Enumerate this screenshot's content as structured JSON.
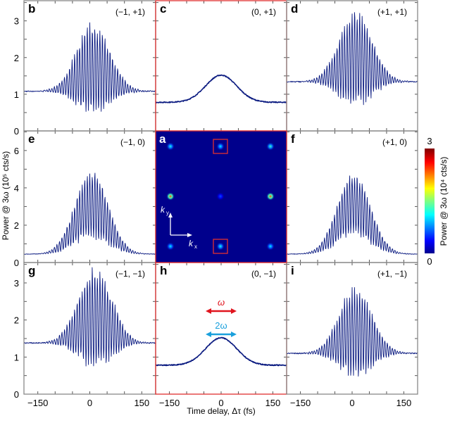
{
  "chart_data": {
    "type": "line",
    "xlabel": "Time delay, Δτ (fs)",
    "ylabel": "Power @ 3ω (10⁵ cts/s)",
    "xlim": [
      -190,
      190
    ],
    "x_ticks": [
      -150,
      0,
      150
    ],
    "x_tick_labels": [
      "−150",
      "0",
      "150"
    ],
    "rows": [
      {
        "ylim": [
          0,
          3.55
        ],
        "y_ticks": [
          0,
          1,
          2,
          3
        ],
        "y_tick_labels": [
          "0",
          "1",
          "2",
          "3"
        ],
        "minor_step": 0.5
      },
      {
        "ylim": [
          0,
          7.05
        ],
        "y_ticks": [
          0,
          2,
          4,
          6
        ],
        "y_tick_labels": [
          "0",
          "2",
          "4",
          "6"
        ],
        "minor_step": 1
      },
      {
        "ylim": [
          0,
          3.55
        ],
        "y_ticks": [
          0,
          1,
          2,
          3
        ],
        "y_tick_labels": [
          "0",
          "1",
          "2",
          "3"
        ],
        "minor_step": 0.5
      }
    ],
    "panels": [
      {
        "letter": "b",
        "order": "(−1, +1)",
        "row": 0,
        "col": 0,
        "kind": "fringe",
        "baseline": 1.08,
        "max": 3.0,
        "min": 0.4,
        "center": 10,
        "highlight": false
      },
      {
        "letter": "c",
        "order": "(0, +1)",
        "row": 0,
        "col": 1,
        "kind": "smooth",
        "baseline": 0.78,
        "max": 1.52,
        "center": 0,
        "highlight": true
      },
      {
        "letter": "d",
        "order": "(+1, +1)",
        "row": 0,
        "col": 2,
        "kind": "fringe",
        "baseline": 1.34,
        "max": 3.34,
        "min": 0.6,
        "center": 10,
        "highlight": false
      },
      {
        "letter": "e",
        "order": "(−1, 0)",
        "row": 1,
        "col": 0,
        "kind": "fringe",
        "baseline": 0.45,
        "max": 5.0,
        "min": 1.2,
        "center": 5,
        "highlight": false
      },
      {
        "letter": "f",
        "order": "(+1, 0)",
        "row": 1,
        "col": 2,
        "kind": "fringe",
        "baseline": 0.45,
        "max": 4.9,
        "min": 1.3,
        "center": 5,
        "highlight": false
      },
      {
        "letter": "g",
        "order": "(−1, −1)",
        "row": 2,
        "col": 0,
        "kind": "fringe",
        "baseline": 1.38,
        "max": 3.5,
        "min": 0.62,
        "center": 15,
        "highlight": false
      },
      {
        "letter": "h",
        "order": "(0, −1)",
        "row": 2,
        "col": 1,
        "kind": "smooth",
        "baseline": 0.78,
        "max": 1.52,
        "center": 0,
        "highlight": true
      },
      {
        "letter": "i",
        "order": "(+1, −1)",
        "row": 2,
        "col": 2,
        "kind": "fringe",
        "baseline": 1.1,
        "max": 2.95,
        "min": 0.4,
        "center": 10,
        "highlight": false
      }
    ],
    "series_color": "#0a1a80",
    "highlight_color": "#e03030",
    "legend": {
      "omega": "ω",
      "two_omega": "2ω",
      "omega_color": "#e0141e",
      "two_omega_color": "#1aa0dc"
    },
    "heatmap": {
      "letter": "a",
      "type": "heatmap",
      "background": "#00008c",
      "kx_label": "k",
      "kx_sub": "x",
      "ky_label": "k",
      "ky_sub": "y",
      "spots": [
        {
          "i": -1,
          "j": 1,
          "value": 1.2
        },
        {
          "i": 0,
          "j": 1,
          "value": 1.1
        },
        {
          "i": 1,
          "j": 1,
          "value": 1.3
        },
        {
          "i": -1,
          "j": 0,
          "value": 2.4
        },
        {
          "i": 0,
          "j": 0,
          "value": 0.6
        },
        {
          "i": 1,
          "j": 0,
          "value": 2.4
        },
        {
          "i": -1,
          "j": -1,
          "value": 1.1
        },
        {
          "i": 0,
          "j": -1,
          "value": 1.2
        },
        {
          "i": 1,
          "j": -1,
          "value": 1.1
        }
      ],
      "boxed": [
        {
          "i": 0,
          "j": 1
        },
        {
          "i": 0,
          "j": -1
        }
      ]
    },
    "colorbar": {
      "min_label": "0",
      "max_label": "3",
      "label": "Power @ 3ω (10⁴ cts/s)",
      "range": [
        0,
        3
      ]
    }
  }
}
